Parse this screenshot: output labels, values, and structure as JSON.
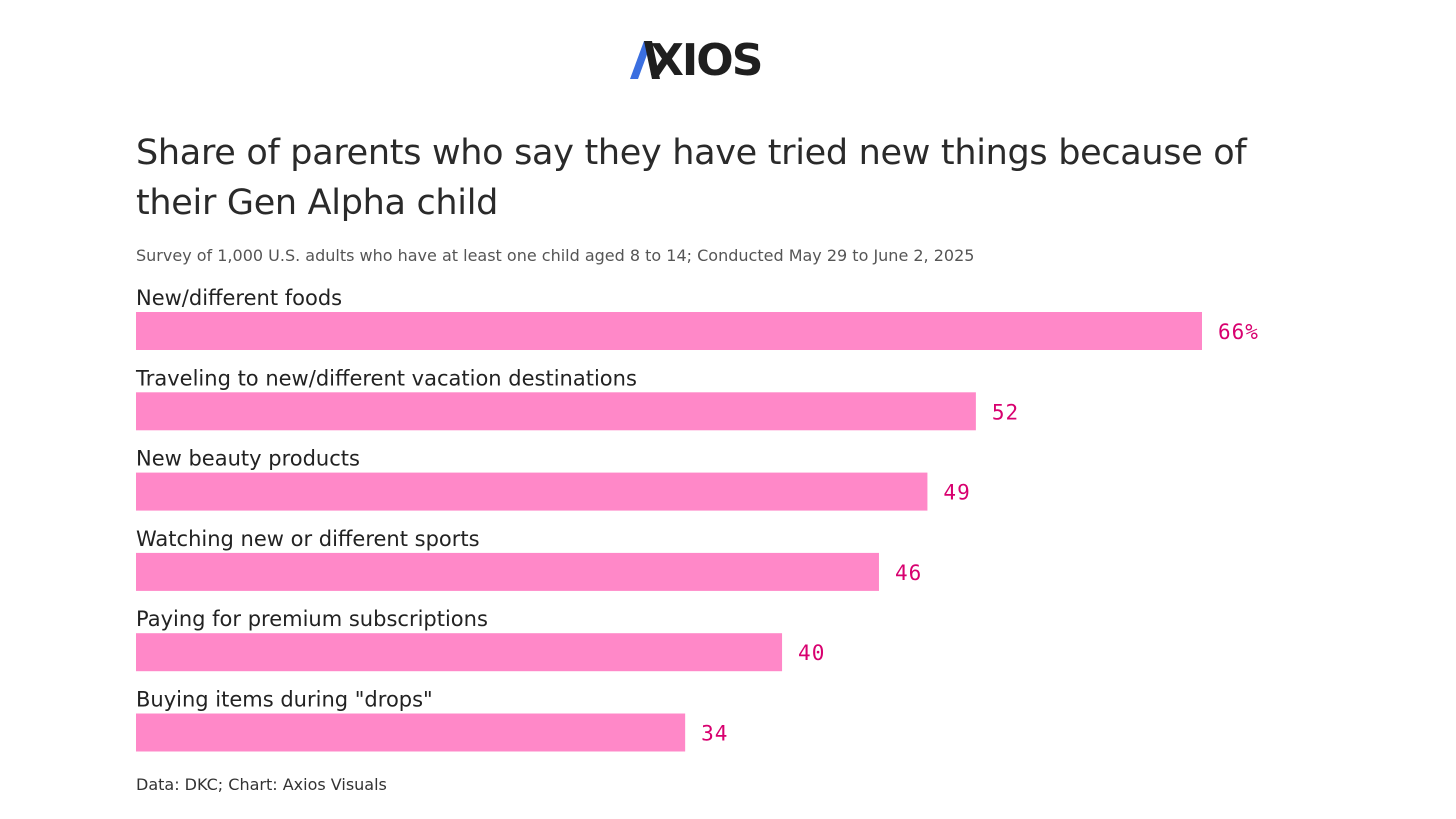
{
  "brand": {
    "name": "AXIOS",
    "wordmark_rest": "XIOS",
    "accent_color": "#3b6fe0",
    "dark_color": "#1f1f1f"
  },
  "chart_data": {
    "type": "bar",
    "orientation": "horizontal",
    "title": "Share of parents who say they have tried new things because of their Gen Alpha child",
    "subtitle": "Survey of 1,000 U.S. adults who have at least one child aged 8 to 14; Conducted May 29 to June 2, 2025",
    "categories": [
      "New/different foods",
      "Traveling to new/different vacation destinations",
      "New beauty products",
      "Watching new or different sports",
      "Paying for premium subscriptions",
      "Buying items during \"drops\""
    ],
    "values": [
      66,
      52,
      49,
      46,
      40,
      34
    ],
    "value_labels": [
      "66%",
      "52",
      "49",
      "46",
      "40",
      "34"
    ],
    "xlim": [
      0,
      66
    ],
    "unit": "%",
    "bar_color": "#ff88c8",
    "label_color": "#d8006f",
    "xlabel": "",
    "ylabel": "",
    "grid": false,
    "source": "Data: DKC; Chart: Axios Visuals"
  }
}
